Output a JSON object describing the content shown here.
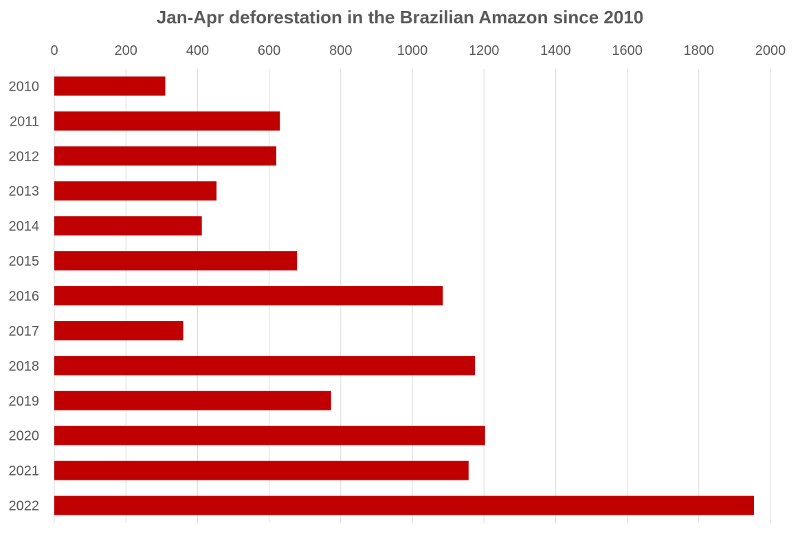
{
  "chart_data": {
    "type": "bar",
    "orientation": "horizontal",
    "title": "Jan-Apr deforestation in the Brazilian Amazon since 2010",
    "xlabel": "",
    "ylabel": "",
    "categories": [
      "2010",
      "2011",
      "2012",
      "2013",
      "2014",
      "2015",
      "2016",
      "2017",
      "2018",
      "2019",
      "2020",
      "2021",
      "2022"
    ],
    "values": [
      310,
      630,
      620,
      453,
      412,
      678,
      1085,
      360,
      1175,
      773,
      1203,
      1157,
      1954
    ],
    "xlim": [
      0,
      2000
    ],
    "x_ticks": [
      "0",
      "200",
      "400",
      "600",
      "800",
      "1000",
      "1200",
      "1400",
      "1600",
      "1800",
      "2000"
    ],
    "x_axis_position": "top",
    "grid": true,
    "legend": "none",
    "bar_color": "#c00000"
  }
}
